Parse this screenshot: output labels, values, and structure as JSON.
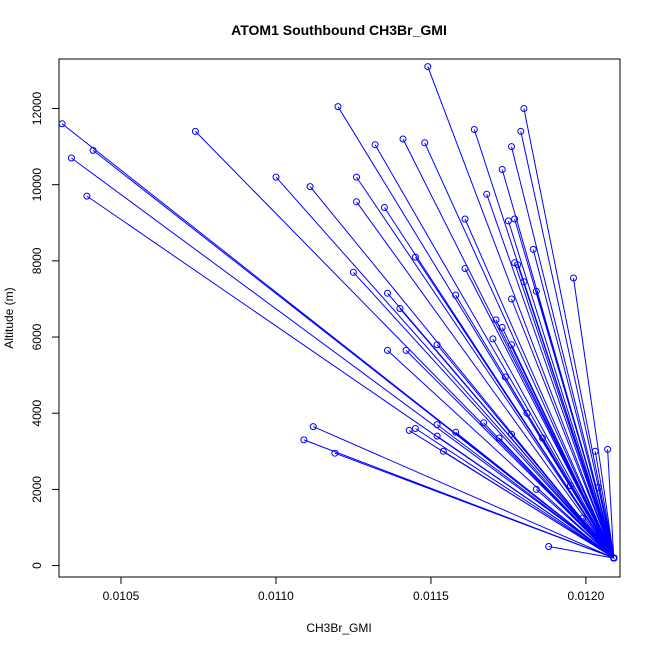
{
  "chart_data": {
    "type": "line",
    "title": "ATOM1 Southbound CH3Br_GMI",
    "xlabel": "CH3Br_GMI",
    "ylabel": "Altitude (m)",
    "xlim": [
      0.0103,
      0.01211
    ],
    "ylim": [
      -300,
      13300
    ],
    "x_ticks": [
      0.0105,
      0.011,
      0.0115,
      0.012
    ],
    "x_tick_labels": [
      "0.0105",
      "0.0110",
      "0.0115",
      "0.0120"
    ],
    "y_ticks": [
      0,
      2000,
      4000,
      6000,
      8000,
      10000,
      12000
    ],
    "y_tick_labels": [
      "0",
      "2000",
      "4000",
      "6000",
      "8000",
      "10000",
      "12000"
    ],
    "grid": false,
    "color": "#0000ff",
    "series": [
      {
        "x": [
          0.01209,
          0.01149,
          0.01209,
          0.0118,
          0.01209,
          0.01179,
          0.01209,
          0.01164,
          0.01209,
          0.0112,
          0.01209,
          0.01031,
          0.01209,
          0.01074,
          0.01209,
          0.01141,
          0.01209,
          0.01041,
          0.01209,
          0.01034,
          0.01209,
          0.01132,
          0.01209,
          0.01148,
          0.01209,
          0.01176,
          0.01209,
          0.01173,
          0.01209,
          0.011,
          0.01209,
          0.01111,
          0.01209,
          0.01039,
          0.01209,
          0.01126,
          0.01209,
          0.01135,
          0.01209,
          0.01168,
          0.01209,
          0.01175,
          0.01209,
          0.01126,
          0.01209,
          0.01161,
          0.01209,
          0.01177,
          0.01209,
          0.01183,
          0.01209,
          0.01145,
          0.01209,
          0.01177,
          0.01209,
          0.01196,
          0.01209,
          0.01161,
          0.01209,
          0.01125,
          0.01209,
          0.01178,
          0.01209,
          0.0118,
          0.01209,
          0.01176,
          0.01209,
          0.01184,
          0.01209,
          0.01136,
          0.01209,
          0.01158,
          0.01209,
          0.0114,
          0.01209,
          0.01171,
          0.01209,
          0.01173,
          0.01209,
          0.0117,
          0.01209,
          0.01176,
          0.01209,
          0.01142,
          0.01209,
          0.01152,
          0.01209,
          0.01136,
          0.01209,
          0.01174,
          0.01209,
          0.01181,
          0.01209,
          0.01167,
          0.01209,
          0.01112,
          0.01209,
          0.01145,
          0.01209,
          0.01152,
          0.01209,
          0.01143,
          0.01209,
          0.01109,
          0.01209,
          0.01158,
          0.01209,
          0.01152,
          0.01209,
          0.01172,
          0.01209,
          0.01176,
          0.01209,
          0.01186,
          0.01209,
          0.01154,
          0.01209,
          0.01119,
          0.01209,
          0.01203,
          0.01209,
          0.01207,
          0.01209,
          0.01195,
          0.01209,
          0.01204,
          0.01209,
          0.01184,
          0.01209,
          0.01199,
          0.01209,
          0.01188
        ],
        "y": [
          200,
          13100,
          200,
          12000,
          200,
          11400,
          200,
          11450,
          200,
          12050,
          200,
          11600,
          200,
          11400,
          200,
          11200,
          200,
          10900,
          200,
          10700,
          200,
          11050,
          200,
          11100,
          200,
          11000,
          200,
          10400,
          200,
          10200,
          200,
          9950,
          200,
          9700,
          200,
          10200,
          200,
          9400,
          200,
          9750,
          200,
          9050,
          200,
          9550,
          200,
          9100,
          200,
          9100,
          200,
          8300,
          200,
          8100,
          200,
          7950,
          200,
          7550,
          200,
          7800,
          200,
          7700,
          200,
          7900,
          200,
          7450,
          200,
          7000,
          200,
          7200,
          200,
          7150,
          200,
          7100,
          200,
          6750,
          200,
          6450,
          200,
          6250,
          200,
          5950,
          200,
          5800,
          200,
          5650,
          200,
          5800,
          200,
          5650,
          200,
          4950,
          200,
          4000,
          200,
          3750,
          200,
          3650,
          200,
          3600,
          200,
          3700,
          200,
          3550,
          200,
          3300,
          200,
          3500,
          200,
          3400,
          200,
          3350,
          200,
          3450,
          200,
          3350,
          200,
          3000,
          200,
          2950,
          200,
          3000,
          200,
          3050,
          200,
          2100,
          200,
          2050,
          200,
          2000,
          200,
          1250,
          200,
          500
        ]
      }
    ]
  }
}
